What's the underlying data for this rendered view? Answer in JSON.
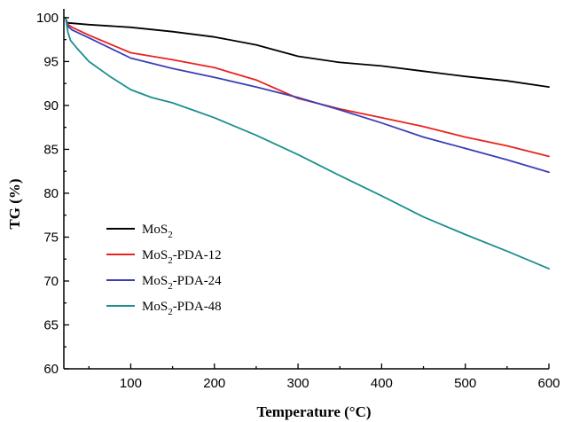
{
  "chart_data": {
    "type": "line",
    "title": "",
    "xlabel": "Temperature (°C)",
    "ylabel": "TG (%)",
    "xlim": [
      20,
      600
    ],
    "ylim": [
      60,
      101
    ],
    "x_ticks": [
      100,
      200,
      300,
      400,
      500,
      600
    ],
    "y_ticks": [
      60,
      65,
      70,
      75,
      80,
      85,
      90,
      95,
      100
    ],
    "grid": false,
    "legend_position": "lower-left",
    "series": [
      {
        "name": "MoS2",
        "legend_base": "MoS",
        "legend_sub": "2",
        "legend_suffix": "",
        "color": "#000000",
        "x": [
          25,
          50,
          100,
          150,
          200,
          250,
          300,
          350,
          400,
          450,
          500,
          550,
          600
        ],
        "y": [
          99.4,
          99.2,
          98.9,
          98.4,
          97.8,
          96.9,
          95.6,
          94.9,
          94.5,
          93.9,
          93.3,
          92.8,
          92.1
        ]
      },
      {
        "name": "MoS2-PDA-12",
        "legend_base": "MoS",
        "legend_sub": "2",
        "legend_suffix": "-PDA-12",
        "color": "#e8231f",
        "x": [
          22,
          25,
          30,
          50,
          100,
          150,
          200,
          250,
          300,
          350,
          400,
          450,
          500,
          550,
          600
        ],
        "y": [
          100,
          99.2,
          98.9,
          98.0,
          96.0,
          95.2,
          94.3,
          92.9,
          90.8,
          89.6,
          88.6,
          87.6,
          86.4,
          85.4,
          84.2
        ]
      },
      {
        "name": "MoS2-PDA-24",
        "legend_base": "MoS",
        "legend_sub": "2",
        "legend_suffix": "-PDA-24",
        "color": "#3a3fb5",
        "x": [
          22,
          25,
          30,
          50,
          100,
          150,
          200,
          250,
          300,
          350,
          400,
          450,
          500,
          550,
          600
        ],
        "y": [
          100,
          99.0,
          98.6,
          97.7,
          95.4,
          94.2,
          93.2,
          92.1,
          90.9,
          89.5,
          88.0,
          86.4,
          85.1,
          83.8,
          82.4
        ]
      },
      {
        "name": "MoS2-PDA-48",
        "legend_base": "MoS",
        "legend_sub": "2",
        "legend_suffix": "-PDA-48",
        "color": "#1b8f8c",
        "x": [
          22,
          25,
          28,
          35,
          50,
          75,
          100,
          125,
          150,
          200,
          250,
          300,
          350,
          400,
          450,
          500,
          550,
          600
        ],
        "y": [
          100,
          98.3,
          97.4,
          96.6,
          95.0,
          93.3,
          91.8,
          90.9,
          90.3,
          88.6,
          86.6,
          84.4,
          82.0,
          79.7,
          77.3,
          75.3,
          73.4,
          71.4
        ]
      }
    ]
  }
}
